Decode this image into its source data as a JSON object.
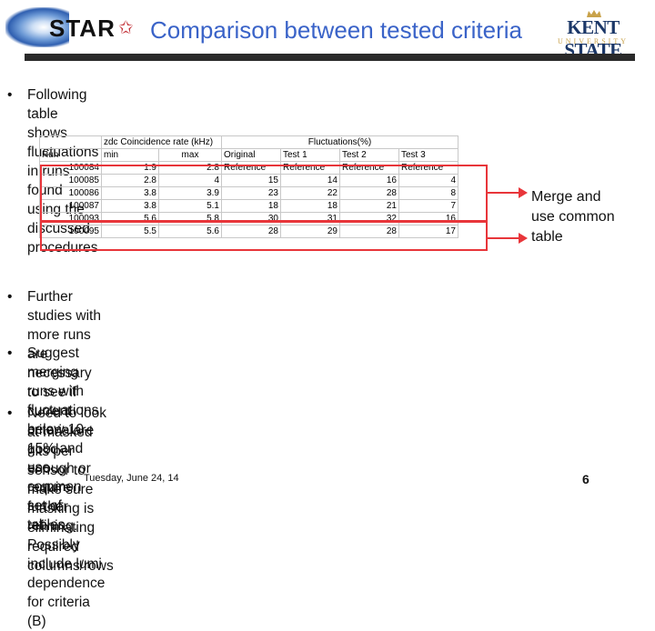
{
  "header": {
    "logo_text": "STAR",
    "title": "Comparison between tested criteria",
    "university_name": "KENT STATE",
    "university_sub": "UNIVERSITY"
  },
  "bullets": [
    "Following table shows fluctuations in runs found using the discussed procedures",
    "Further studies with more runs are necessary to see if current criteria are good\nenough or require further refining. Possibly include lumi dependence for criteria (B)",
    "Suggest merging runs with fluctuations below 10-15% and use common set of\ntables",
    "Need to look at masked hits per sensor to make sure masking is eliminating\nrequired columns/rows"
  ],
  "bullet_symbol": "•",
  "table": {
    "group_headers": {
      "rate": "zdc Coincidence rate (kHz)",
      "fluct": "Fluctuations(%)"
    },
    "columns": [
      "Run",
      "min",
      "max",
      "Original",
      "Test 1",
      "Test 2",
      "Test 3"
    ],
    "rows": [
      [
        "100084",
        "1.9",
        "2.8",
        "Reference",
        "Reference",
        "Reference",
        "Reference"
      ],
      [
        "100085",
        "2.8",
        "4",
        "15",
        "14",
        "16",
        "4"
      ],
      [
        "100086",
        "3.8",
        "3.9",
        "23",
        "22",
        "28",
        "8"
      ],
      [
        "100087",
        "3.8",
        "5.1",
        "18",
        "18",
        "21",
        "7"
      ],
      [
        "100093",
        "5.6",
        "5.8",
        "30",
        "31",
        "32",
        "16"
      ],
      [
        "100095",
        "5.5",
        "5.6",
        "28",
        "29",
        "28",
        "17"
      ]
    ]
  },
  "annotation": "Merge and\nuse common\ntable",
  "annotation_color": "#e8353a",
  "footer": {
    "date": "Tuesday, June 24, 14",
    "page": "6"
  },
  "colors": {
    "title": "#3a63c8",
    "bar": "#2a2a2a",
    "university": "#1b3768",
    "university_sub": "#c8a24a"
  }
}
